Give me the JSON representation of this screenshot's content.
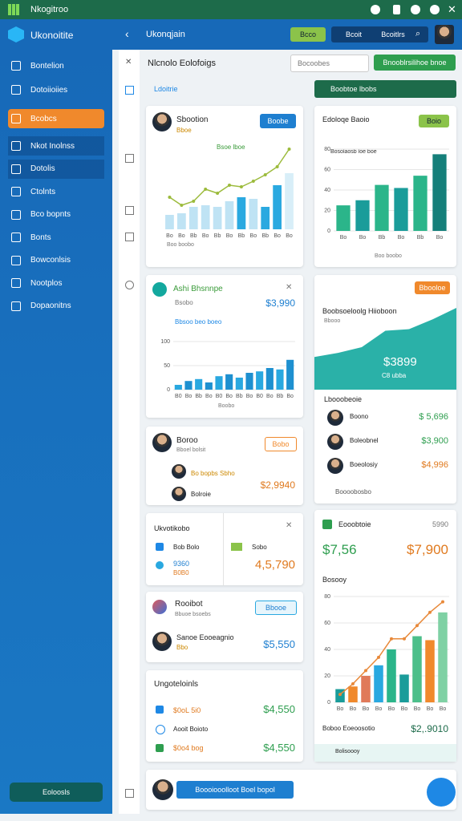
{
  "topbar": {
    "title": "Nkogitroo"
  },
  "header": {
    "brand": "Ukonoitite",
    "page": "Ukonqjain",
    "primary": "Bcco",
    "tabs": [
      "Bcoit",
      "Bcoitlrs"
    ]
  },
  "sidebar": {
    "items": [
      {
        "label": "Bontelion"
      },
      {
        "label": "Dotoiioiies"
      },
      {
        "label": "Bcobcs",
        "active": true
      },
      {
        "label": "Nkot Inolnss"
      },
      {
        "label": "Dotolis"
      },
      {
        "label": "Ctolnts"
      },
      {
        "label": "Bco bopnts"
      },
      {
        "label": "Bonts"
      },
      {
        "label": "Bowconlsis"
      },
      {
        "label": "Nootplos"
      },
      {
        "label": "Dopaonitns"
      }
    ],
    "footer": "Eoloosls"
  },
  "main": {
    "title": "Nlcnolo Eolofoigs",
    "search": "Bocoobes",
    "action": "Bnooblrsilihoe bnoe",
    "filter": "Ldoitrie",
    "banner": "Boobtoe lbobs"
  },
  "cards": {
    "contact": {
      "name": "Boroo",
      "sub": "Bboel bolsit",
      "button": "Bobo",
      "row1": "Bo bopbs Sbho",
      "row2": "Bolroie",
      "value": "$2,9940"
    },
    "list": {
      "title": "Ukvotikobo",
      "row1": "Bob Bolo",
      "row2": "9360",
      "row2sub": "B0B0",
      "side": "Sobo",
      "value": "4,5,790"
    },
    "person": {
      "title": "Rooibot",
      "sub": "Bbuoe bsoebs",
      "button": "Bbooe",
      "name": "Sanoe Eooeagnio",
      "tag": "Bbo",
      "value": "$5,550"
    },
    "summary": {
      "title": "Ungoteloinls",
      "row1": "$0oL 5i0",
      "value1": "$4,550",
      "row2": "Aooit Boioto",
      "row3": "$0o4 bog",
      "value3": "$4,550"
    },
    "accounts": {
      "title": "Lbooobeoie",
      "rows": [
        {
          "name": "Boono",
          "value": "$ 5,696"
        },
        {
          "name": "Boleobnel",
          "value": "$3,900"
        },
        {
          "name": "Boeolosiy",
          "value": "$4,996"
        }
      ],
      "footer": "Boooobosbo"
    },
    "stats": {
      "title": "Eooobtoie",
      "side": "5990",
      "value1": "$7,56",
      "value2": "$7,900"
    },
    "bottom": {
      "button": "Boooiooolloot Boel bopol"
    }
  },
  "chart_data": [
    {
      "type": "bar-line",
      "title": "Sbootion",
      "subtitle": "Bboe",
      "button": "Boobe",
      "annotation": "Bsoe lboe",
      "caption": "Boo boobo",
      "categories": [
        "Bo",
        "Bo",
        "Bb",
        "Bo",
        "Bb",
        "Bo",
        "Bb",
        "Bo",
        "Bb",
        "Bo",
        "Bo"
      ],
      "ylim": [
        0,
        100
      ],
      "series": [
        {
          "type": "bar",
          "colors": [
            "#bfe3f4",
            "#bfe3f4",
            "#bfe3f4",
            "#bfe3f4",
            "#bfe3f4",
            "#bfe3f4",
            "#2aa9e0",
            "#bfe3f4",
            "#2aa9e0",
            "#2aa9e0",
            "#d8eef8"
          ],
          "values": [
            18,
            20,
            28,
            30,
            28,
            35,
            40,
            38,
            28,
            55,
            70
          ]
        },
        {
          "type": "line",
          "color": "#9cbb3c",
          "values": [
            40,
            30,
            35,
            50,
            45,
            55,
            53,
            60,
            68,
            78,
            100
          ]
        }
      ]
    },
    {
      "type": "bar",
      "title": "Edoloqe Baoio",
      "button": "Boio",
      "annotation": "Bosolaosb loe boe",
      "caption": "Boo boobo",
      "categories": [
        "Bo",
        "Bo",
        "Bb",
        "Bo",
        "Bb",
        "Bo"
      ],
      "ylim": [
        0,
        80
      ],
      "yticks": [
        0,
        20,
        40,
        60,
        80
      ],
      "series": [
        {
          "type": "bar",
          "colors": [
            "#2bb58a",
            "#1a9c9a",
            "#2bb58a",
            "#1a9c9a",
            "#2bb58a",
            "#157f7a"
          ],
          "values": [
            25,
            30,
            45,
            42,
            54,
            75
          ]
        }
      ]
    },
    {
      "type": "bar",
      "title": "Ashi Bhsnnpe",
      "subtitle": "Bsobo",
      "value": "$3,990",
      "annotation": "Bbsoo beo boeo",
      "caption": "Boobo",
      "categories": [
        "B0",
        "Bo",
        "Bb",
        "Bo",
        "B0",
        "Bo",
        "Bb",
        "Bo",
        "B0",
        "Bo",
        "Bb",
        "Bo"
      ],
      "ylim": [
        0,
        100
      ],
      "yticks": [
        0,
        50,
        100
      ],
      "series": [
        {
          "type": "bar",
          "colors": [
            "#29a8e0",
            "#1e90d0",
            "#29a8e0",
            "#1e90d0",
            "#29a8e0",
            "#1e90d0",
            "#29a8e0",
            "#1e90d0",
            "#29a8e0",
            "#1e90d0",
            "#29a8e0",
            "#1e90d0"
          ],
          "values": [
            10,
            18,
            22,
            15,
            28,
            32,
            25,
            35,
            38,
            45,
            42,
            62
          ]
        }
      ]
    },
    {
      "type": "area",
      "title": "Boobsoeloolg Hiioboon",
      "subtitle": "Bbooo",
      "button": "Bbooloe",
      "value": "$3899",
      "annotation": "C8 ubba",
      "ylim": [
        0,
        100
      ],
      "series": [
        {
          "color": "#13a89e",
          "values": [
            40,
            45,
            52,
            72,
            74,
            86,
            100
          ]
        }
      ]
    },
    {
      "type": "bar-line",
      "title": "Bosooy",
      "footer": "Boboo Eoeoosotio",
      "value": "$2,.9010",
      "caption": "Bolisoooy",
      "categories": [
        "Bo",
        "Bo",
        "Bo",
        "Bo",
        "Bo",
        "Bo",
        "Bo",
        "Bo",
        "Bo"
      ],
      "ylim": [
        0,
        80
      ],
      "yticks": [
        0,
        20,
        40,
        60,
        80
      ],
      "series": [
        {
          "type": "bar",
          "colors": [
            "#1a9c9a",
            "#f0892c",
            "#e07a5a",
            "#29a8e0",
            "#2bb58a",
            "#1a9c9a",
            "#4cbf8a",
            "#f0892c",
            "#7fd1a4"
          ],
          "values": [
            10,
            12,
            20,
            28,
            40,
            21,
            50,
            47,
            68
          ]
        },
        {
          "type": "line",
          "color": "#e8893a",
          "values": [
            6,
            14,
            24,
            34,
            48,
            48,
            58,
            68,
            76
          ]
        }
      ]
    }
  ]
}
